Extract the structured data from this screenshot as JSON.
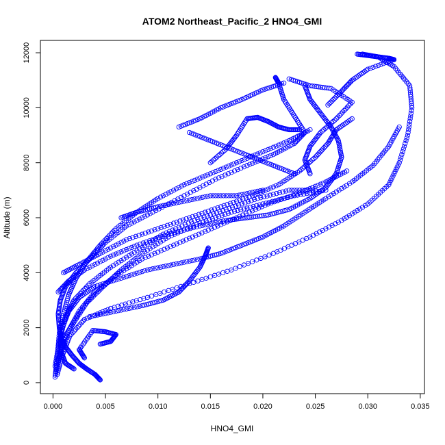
{
  "chart_data": {
    "type": "scatter",
    "title": "ATOM2 Northeast_Pacific_2 HNO4_GMI",
    "xlabel": "HNO4_GMI",
    "ylabel": "Altitude (m)",
    "xlim": [
      -0.0012,
      0.0354
    ],
    "ylim": [
      -400,
      12450
    ],
    "x_ticks": [
      0,
      0.005,
      0.01,
      0.015,
      0.02,
      0.025,
      0.03,
      0.035
    ],
    "x_tick_labels": [
      "0.000",
      "0.005",
      "0.010",
      "0.015",
      "0.020",
      "0.025",
      "0.030",
      "0.035"
    ],
    "y_ticks": [
      0,
      2000,
      4000,
      6000,
      8000,
      10000,
      12000
    ],
    "y_tick_labels": [
      "0",
      "2000",
      "4000",
      "6000",
      "8000",
      "10000",
      "12000"
    ],
    "grid": false,
    "marker": "open-circle",
    "line_style": "dashed-connect",
    "color": "#0000ff",
    "series": [
      {
        "points": [
          [
            0.0002,
            200
          ],
          [
            0.0004,
            900
          ],
          [
            0.0006,
            1800
          ],
          [
            0.001,
            2500
          ],
          [
            0.0015,
            3200
          ],
          [
            0.0022,
            3800
          ],
          [
            0.0032,
            4400
          ],
          [
            0.0045,
            5000
          ],
          [
            0.006,
            5600
          ],
          [
            0.008,
            6200
          ],
          [
            0.01,
            6700
          ],
          [
            0.0125,
            7200
          ],
          [
            0.015,
            7600
          ],
          [
            0.0175,
            8000
          ],
          [
            0.02,
            8400
          ],
          [
            0.0225,
            8800
          ],
          [
            0.0245,
            9200
          ]
        ]
      },
      {
        "points": [
          [
            0.0003,
            400
          ],
          [
            0.0008,
            1200
          ],
          [
            0.0015,
            1900
          ],
          [
            0.0025,
            2600
          ],
          [
            0.004,
            3300
          ],
          [
            0.006,
            3900
          ],
          [
            0.0085,
            4500
          ],
          [
            0.0115,
            5000
          ],
          [
            0.0145,
            5500
          ],
          [
            0.0175,
            6000
          ],
          [
            0.0205,
            6500
          ],
          [
            0.0235,
            6900
          ],
          [
            0.026,
            7300
          ],
          [
            0.028,
            7700
          ]
        ]
      },
      {
        "points": [
          [
            0.0004,
            300
          ],
          [
            0.0009,
            1000
          ],
          [
            0.0016,
            1700
          ],
          [
            0.003,
            2300
          ],
          [
            0.0055,
            2700
          ],
          [
            0.009,
            3100
          ],
          [
            0.013,
            3600
          ],
          [
            0.017,
            4100
          ],
          [
            0.021,
            4700
          ],
          [
            0.0245,
            5300
          ],
          [
            0.0275,
            5900
          ],
          [
            0.03,
            6500
          ],
          [
            0.032,
            7200
          ],
          [
            0.033,
            8000
          ],
          [
            0.0338,
            9000
          ],
          [
            0.0342,
            10000
          ],
          [
            0.034,
            10800
          ],
          [
            0.0325,
            11500
          ],
          [
            0.031,
            11850
          ],
          [
            0.0295,
            11950
          ]
        ]
      },
      {
        "points": [
          [
            0.0002,
            600
          ],
          [
            0.0006,
            1500
          ],
          [
            0.0012,
            2400
          ],
          [
            0.002,
            3000
          ],
          [
            0.0035,
            3600
          ],
          [
            0.0055,
            4200
          ],
          [
            0.008,
            4800
          ],
          [
            0.0105,
            5400
          ],
          [
            0.0135,
            5900
          ],
          [
            0.0165,
            6300
          ],
          [
            0.0195,
            6700
          ],
          [
            0.0225,
            7000
          ],
          [
            0.025,
            7000
          ]
        ]
      },
      {
        "points": [
          [
            0.0005,
            800
          ],
          [
            0.001,
            1600
          ],
          [
            0.002,
            2200
          ],
          [
            0.0032,
            2900
          ],
          [
            0.0048,
            3500
          ],
          [
            0.0065,
            4100
          ],
          [
            0.0085,
            4700
          ],
          [
            0.011,
            5300
          ],
          [
            0.014,
            5800
          ],
          [
            0.017,
            6200
          ],
          [
            0.02,
            6500
          ],
          [
            0.023,
            6800
          ],
          [
            0.026,
            7000
          ]
        ]
      },
      {
        "points": [
          [
            0.0045,
            100
          ],
          [
            0.004,
            300
          ],
          [
            0.0032,
            500
          ],
          [
            0.0025,
            700
          ],
          [
            0.0018,
            1000
          ],
          [
            0.0012,
            1300
          ],
          [
            0.0008,
            1600
          ],
          [
            0.0006,
            2000
          ],
          [
            0.0005,
            2500
          ],
          [
            0.0007,
            3000
          ],
          [
            0.0012,
            3500
          ],
          [
            0.0022,
            4000
          ],
          [
            0.0035,
            4500
          ],
          [
            0.005,
            5100
          ],
          [
            0.007,
            5700
          ],
          [
            0.0095,
            6200
          ],
          [
            0.0125,
            6800
          ],
          [
            0.0155,
            7400
          ],
          [
            0.0185,
            7900
          ],
          [
            0.021,
            8300
          ],
          [
            0.023,
            8700
          ],
          [
            0.024,
            9100
          ],
          [
            0.023,
            9700
          ],
          [
            0.022,
            10300
          ],
          [
            0.0215,
            10900
          ],
          [
            0.0212,
            11100
          ]
        ]
      },
      {
        "points": [
          [
            0.003,
            900
          ],
          [
            0.0025,
            1200
          ],
          [
            0.0038,
            1900
          ],
          [
            0.005,
            1850
          ],
          [
            0.006,
            1750
          ],
          [
            0.0055,
            1500
          ],
          [
            0.0045,
            1400
          ]
        ]
      },
      {
        "points": [
          [
            0.0005,
            3300
          ],
          [
            0.0015,
            3700
          ],
          [
            0.003,
            4100
          ],
          [
            0.0055,
            4600
          ],
          [
            0.008,
            5000
          ],
          [
            0.011,
            5400
          ],
          [
            0.014,
            5700
          ],
          [
            0.0165,
            5900
          ],
          [
            0.0185,
            6000
          ],
          [
            0.0205,
            6100
          ],
          [
            0.0225,
            6300
          ],
          [
            0.0245,
            6700
          ],
          [
            0.026,
            7100
          ],
          [
            0.027,
            7600
          ],
          [
            0.0275,
            8200
          ],
          [
            0.0272,
            8800
          ],
          [
            0.0265,
            9300
          ],
          [
            0.0255,
            9800
          ],
          [
            0.0245,
            10300
          ],
          [
            0.024,
            10800
          ]
        ]
      },
      {
        "points": [
          [
            0.001,
            4000
          ],
          [
            0.0025,
            4300
          ],
          [
            0.0045,
            4700
          ],
          [
            0.007,
            5200
          ],
          [
            0.01,
            5600
          ],
          [
            0.013,
            6000
          ],
          [
            0.016,
            6400
          ],
          [
            0.019,
            6800
          ],
          [
            0.0215,
            7200
          ],
          [
            0.0235,
            7700
          ],
          [
            0.025,
            8200
          ],
          [
            0.0262,
            8700
          ],
          [
            0.027,
            9200
          ],
          [
            0.0285,
            9600
          ]
        ]
      },
      {
        "points": [
          [
            0.0035,
            2400
          ],
          [
            0.006,
            2600
          ],
          [
            0.0085,
            2800
          ],
          [
            0.0105,
            3000
          ],
          [
            0.012,
            3300
          ],
          [
            0.013,
            3700
          ],
          [
            0.014,
            4200
          ],
          [
            0.0145,
            4600
          ],
          [
            0.0148,
            4900
          ]
        ]
      },
      {
        "points": [
          [
            0.015,
            8000
          ],
          [
            0.0165,
            8500
          ],
          [
            0.0175,
            9000
          ],
          [
            0.0185,
            9600
          ],
          [
            0.0195,
            9650
          ],
          [
            0.0205,
            9500
          ],
          [
            0.0215,
            9300
          ],
          [
            0.0225,
            9200
          ],
          [
            0.0235,
            9200
          ]
        ]
      },
      {
        "points": [
          [
            0.02,
            7000
          ],
          [
            0.0175,
            6800
          ],
          [
            0.015,
            6800
          ],
          [
            0.0125,
            6600
          ],
          [
            0.01,
            6400
          ],
          [
            0.008,
            6200
          ],
          [
            0.0065,
            6000
          ]
        ]
      },
      {
        "points": [
          [
            0.0225,
            11050
          ],
          [
            0.0245,
            10800
          ],
          [
            0.0265,
            10700
          ],
          [
            0.0285,
            10200
          ],
          [
            0.027,
            9600
          ],
          [
            0.0255,
            9100
          ],
          [
            0.0245,
            8600
          ],
          [
            0.024,
            8100
          ],
          [
            0.0245,
            7600
          ]
        ]
      },
      {
        "points": [
          [
            0.029,
            11950
          ],
          [
            0.03,
            11900
          ],
          [
            0.031,
            11850
          ],
          [
            0.032,
            11800
          ],
          [
            0.0325,
            11750
          ],
          [
            0.03,
            11400
          ],
          [
            0.0285,
            11000
          ],
          [
            0.0275,
            10600
          ],
          [
            0.0262,
            10100
          ]
        ]
      },
      {
        "points": [
          [
            0.012,
            9300
          ],
          [
            0.014,
            9600
          ],
          [
            0.016,
            10000
          ],
          [
            0.018,
            10300
          ],
          [
            0.02,
            10650
          ],
          [
            0.022,
            10900
          ]
        ]
      },
      {
        "points": [
          [
            0.013,
            9100
          ],
          [
            0.015,
            8800
          ],
          [
            0.017,
            8500
          ],
          [
            0.019,
            8200
          ],
          [
            0.021,
            7900
          ],
          [
            0.023,
            7600
          ]
        ]
      },
      {
        "points": [
          [
            0.002,
            500
          ],
          [
            0.0012,
            700
          ],
          [
            0.0008,
            1100
          ],
          [
            0.0007,
            1500
          ],
          [
            0.0009,
            2000
          ],
          [
            0.0015,
            2600
          ],
          [
            0.0025,
            3100
          ],
          [
            0.004,
            3500
          ],
          [
            0.0065,
            3800
          ],
          [
            0.009,
            4100
          ],
          [
            0.0115,
            4300
          ],
          [
            0.014,
            4500
          ],
          [
            0.016,
            4700
          ],
          [
            0.018,
            5000
          ],
          [
            0.02,
            5300
          ],
          [
            0.022,
            5700
          ],
          [
            0.024,
            6200
          ],
          [
            0.026,
            6700
          ],
          [
            0.0285,
            7300
          ],
          [
            0.0305,
            7900
          ],
          [
            0.032,
            8600
          ],
          [
            0.033,
            9300
          ]
        ]
      }
    ]
  }
}
